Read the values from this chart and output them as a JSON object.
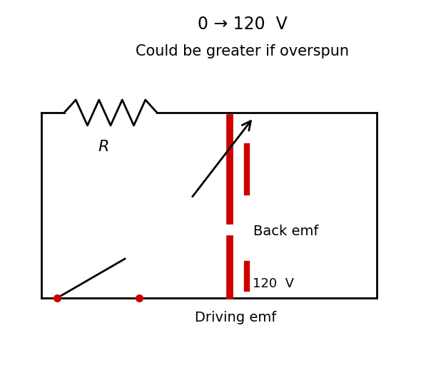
{
  "bg_color": "#ffffff",
  "circuit_color": "#000000",
  "emf_color": "#cc0000",
  "title_line1": "0 → 120  V",
  "title_line2": "Could be greater if overspun",
  "back_emf_label": "Back emf",
  "driving_emf_label": "Driving emf",
  "voltage_label": "120  V",
  "R_label": "R",
  "figsize": [
    6.25,
    5.33
  ],
  "dpi": 100
}
